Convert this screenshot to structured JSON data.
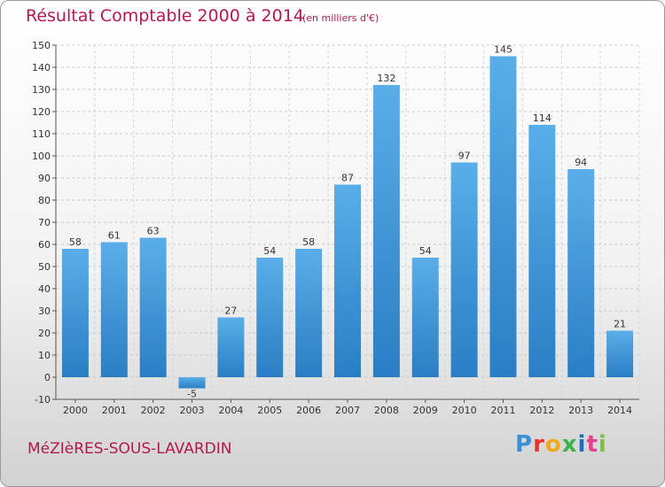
{
  "header": {
    "title": "Résultat Comptable 2000 à 2014",
    "unit": "(en milliers d'€)"
  },
  "footer": {
    "place": "MéZIèRES-SOUS-LAVARDIN",
    "logo_text": "Proxiti",
    "logo_colors": [
      "#3a8fd6",
      "#e8342a",
      "#f2a81d",
      "#3bb34a",
      "#1d6fc0",
      "#e5428d",
      "#7fbf3f"
    ]
  },
  "chart_data": {
    "type": "bar",
    "title": "Résultat Comptable 2000 à 2014",
    "xlabel": "",
    "ylabel": "",
    "categories": [
      "2000",
      "2001",
      "2002",
      "2003",
      "2004",
      "2005",
      "2006",
      "2007",
      "2008",
      "2009",
      "2010",
      "2011",
      "2012",
      "2013",
      "2014"
    ],
    "values": [
      58,
      61,
      63,
      -5,
      27,
      54,
      58,
      87,
      132,
      54,
      97,
      145,
      114,
      94,
      21
    ],
    "value_labels": [
      "58",
      "61",
      "63",
      "-5",
      "27",
      "54",
      "58",
      "87",
      "132",
      "54",
      "97",
      "145",
      "114",
      "94",
      "21"
    ],
    "ylim": [
      -10,
      150
    ],
    "yticks": [
      -10,
      0,
      10,
      20,
      30,
      40,
      50,
      60,
      70,
      80,
      90,
      100,
      110,
      120,
      130,
      140,
      150
    ],
    "grid": true,
    "bar_color_light": "#5aaee8",
    "bar_color_dark": "#2a7ec4"
  }
}
